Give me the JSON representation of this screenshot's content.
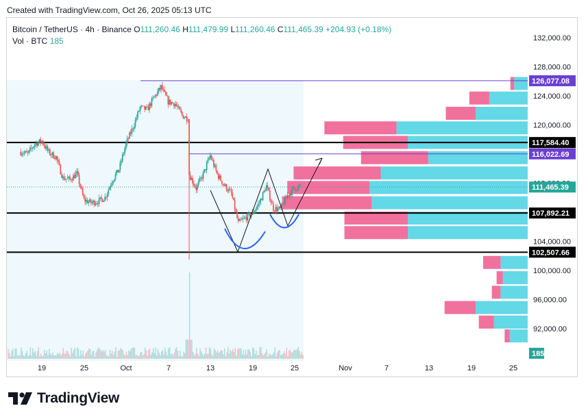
{
  "header": {
    "created": "Created with TradingView.com, Oct 26, 2025 05:13 UTC"
  },
  "legend": {
    "symbol": "Bitcoin / TetherUS · 4h · Binance",
    "o_label": "O",
    "o_value": "111,260.46",
    "h_label": "H",
    "h_value": "111,479.99",
    "l_label": "L",
    "l_value": "111,260.46",
    "c_label": "C",
    "c_value": "111,465.39",
    "change": "+204.93 (+0.18%)",
    "vol_label": "Vol · BTC",
    "vol_value": "185"
  },
  "brand": {
    "name": "TradingView"
  },
  "colors": {
    "up": "#26a69a",
    "down": "#ef5350",
    "profile_up": "#5bd6e6",
    "profile_down": "#f06292",
    "purple": "#6a3fd1",
    "level": "#000000",
    "highlight": "#e3f4fb",
    "price_tag": "#26a69a"
  },
  "chart_data": {
    "type": "candlestick",
    "symbol": "Bitcoin / TetherUS",
    "interval": "4h",
    "exchange": "Binance",
    "y_axis": {
      "range": [
        89500,
        134000
      ],
      "ticks": [
        "132,000.00",
        "128,000.00",
        "124,000.00",
        "120,000.00",
        "116,000.00",
        "112,000.00",
        "108,000.00",
        "104,000.00",
        "100,000.00",
        "96,000.00",
        "92,000.00"
      ]
    },
    "x_axis": {
      "ticks": [
        "19",
        "25",
        "Oct",
        "7",
        "13",
        "19",
        "25",
        "Nov",
        "7",
        "13",
        "19",
        "25"
      ]
    },
    "price_path": [
      {
        "date": "2025-09-16",
        "close": 116300
      },
      {
        "date": "2025-09-17",
        "close": 116000
      },
      {
        "date": "2025-09-18",
        "close": 117400
      },
      {
        "date": "2025-09-19",
        "close": 117800
      },
      {
        "date": "2025-09-20",
        "close": 116200
      },
      {
        "date": "2025-09-21",
        "close": 115600
      },
      {
        "date": "2025-09-22",
        "close": 112700
      },
      {
        "date": "2025-09-23",
        "close": 112500
      },
      {
        "date": "2025-09-24",
        "close": 113300
      },
      {
        "date": "2025-09-25",
        "close": 109700
      },
      {
        "date": "2025-09-26",
        "close": 109300
      },
      {
        "date": "2025-09-27",
        "close": 109500
      },
      {
        "date": "2025-09-28",
        "close": 110000
      },
      {
        "date": "2025-09-29",
        "close": 112300
      },
      {
        "date": "2025-09-30",
        "close": 113900
      },
      {
        "date": "2025-10-01",
        "close": 117400
      },
      {
        "date": "2025-10-02",
        "close": 119700
      },
      {
        "date": "2025-10-03",
        "close": 122400
      },
      {
        "date": "2025-10-04",
        "close": 122100
      },
      {
        "date": "2025-10-05",
        "close": 123800
      },
      {
        "date": "2025-10-06",
        "close": 125200
      },
      {
        "date": "2025-10-07",
        "close": 123200
      },
      {
        "date": "2025-10-08",
        "close": 122900
      },
      {
        "date": "2025-10-09",
        "close": 121300
      },
      {
        "date": "2025-10-10",
        "close": 120800
      },
      {
        "date": "2025-10-10",
        "close": 113200
      },
      {
        "date": "2025-10-11",
        "close": 111300
      },
      {
        "date": "2025-10-12",
        "close": 113200
      },
      {
        "date": "2025-10-13",
        "close": 115800
      },
      {
        "date": "2025-10-14",
        "close": 113200
      },
      {
        "date": "2025-10-15",
        "close": 111700
      },
      {
        "date": "2025-10-16",
        "close": 110600
      },
      {
        "date": "2025-10-17",
        "close": 106500
      },
      {
        "date": "2025-10-18",
        "close": 107200
      },
      {
        "date": "2025-10-19",
        "close": 107800
      },
      {
        "date": "2025-10-20",
        "close": 109300
      },
      {
        "date": "2025-10-21",
        "close": 111600
      },
      {
        "date": "2025-10-22",
        "close": 108500
      },
      {
        "date": "2025-10-23",
        "close": 108400
      },
      {
        "date": "2025-10-24",
        "close": 110300
      },
      {
        "date": "2025-10-25",
        "close": 111300
      },
      {
        "date": "2025-10-26",
        "close": 111465
      }
    ],
    "volume_spike": {
      "date": "2025-10-10"
    },
    "horizontal_levels": [
      117584.4,
      107892.21,
      102507.66
    ],
    "purple_lines": [
      126077.08,
      116022.69
    ],
    "price_tags": [
      {
        "value": "126,077.08",
        "kind": "purple"
      },
      {
        "value": "117,584.40",
        "kind": "level"
      },
      {
        "value": "116,022.69",
        "kind": "purple"
      },
      {
        "value": "111,465.39",
        "kind": "last"
      },
      {
        "value": "107,892.21",
        "kind": "level"
      },
      {
        "value": "102,507.66",
        "kind": "level"
      },
      {
        "value": "185",
        "kind": "volume"
      }
    ],
    "volume_profile": [
      {
        "price": 125700,
        "up": 0.06,
        "down": 0.03
      },
      {
        "price": 123700,
        "up": 0.17,
        "down": 0.16
      },
      {
        "price": 121600,
        "up": 0.23,
        "down": 0.24
      },
      {
        "price": 119600,
        "up": 0.58,
        "down": 0.58
      },
      {
        "price": 117600,
        "up": 0.53,
        "down": 0.52
      },
      {
        "price": 115500,
        "up": 0.44,
        "down": 0.54
      },
      {
        "price": 113400,
        "up": 0.65,
        "down": 0.7
      },
      {
        "price": 111400,
        "up": 0.7,
        "down": 0.66
      },
      {
        "price": 109300,
        "up": 0.69,
        "down": 0.72
      },
      {
        "price": 107200,
        "up": 0.53,
        "down": 0.51
      },
      {
        "price": 105200,
        "up": 0.53,
        "down": 0.51
      },
      {
        "price": 101100,
        "up": 0.12,
        "down": 0.14
      },
      {
        "price": 99000,
        "up": 0.11,
        "down": 0.05
      },
      {
        "price": 97000,
        "up": 0.12,
        "down": 0.07
      },
      {
        "price": 94900,
        "up": 0.23,
        "down": 0.25
      },
      {
        "price": 92900,
        "up": 0.15,
        "down": 0.12
      },
      {
        "price": 91000,
        "up": 0.08,
        "down": 0.04
      }
    ],
    "drawings": [
      "double bottom (two U curves)",
      "W pattern",
      "projection arrow"
    ]
  }
}
